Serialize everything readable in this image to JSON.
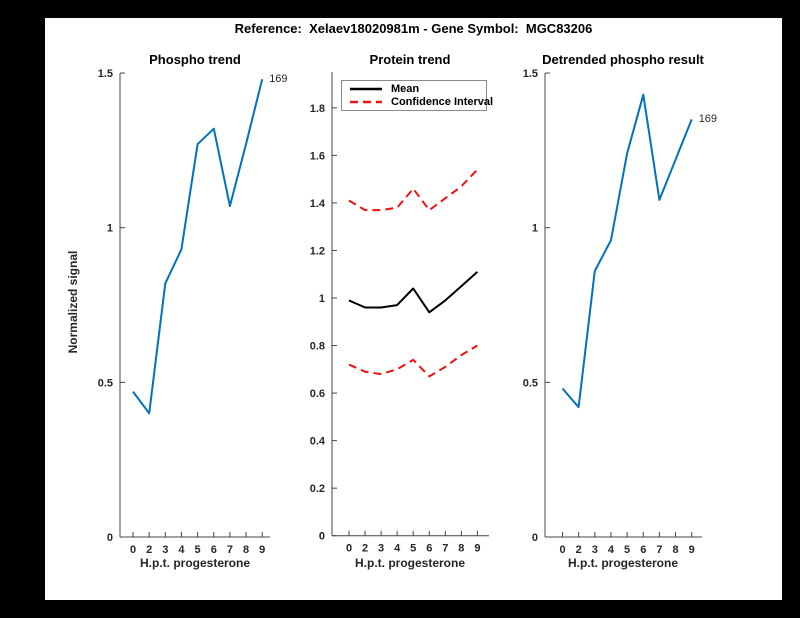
{
  "figure": {
    "title": "Reference:  Xelaev18020981m - Gene Symbol:  MGC83206",
    "background": "#ffffff",
    "frame_color": "#000000"
  },
  "colors": {
    "phospho_line": "#0072bd",
    "mean_line": "#000000",
    "confidence_line": "#ee1111",
    "axis": "#444444",
    "text": "#262626"
  },
  "chart_data": [
    {
      "type": "line",
      "title": "Phospho trend",
      "xlabel": "H.p.t. progesterone",
      "ylabel": "Normalized signal",
      "x_tick_labels": [
        "0",
        "2",
        "3",
        "4",
        "5",
        "6",
        "7",
        "8",
        "9"
      ],
      "y_ticks": [
        0,
        0.5,
        1,
        1.5
      ],
      "y_tick_labels": [
        "0",
        "0.5",
        "1",
        "1.5"
      ],
      "ylim": [
        0,
        1.5
      ],
      "grid": false,
      "series": [
        {
          "name": "phospho-signal",
          "color": "#0072bd",
          "style": "solid",
          "values": [
            0.47,
            0.4,
            0.82,
            0.93,
            1.27,
            1.32,
            1.07,
            1.27,
            1.48
          ]
        }
      ],
      "end_label": "169"
    },
    {
      "type": "line",
      "title": "Protein trend",
      "xlabel": "H.p.t. progesterone",
      "ylabel": "",
      "x_tick_labels": [
        "0",
        "2",
        "3",
        "4",
        "5",
        "6",
        "7",
        "8",
        "9"
      ],
      "y_ticks": [
        0,
        0.2,
        0.4,
        0.6,
        0.8,
        1,
        1.2,
        1.4,
        1.6,
        1.8
      ],
      "y_tick_labels": [
        "0",
        "0.2",
        "0.4",
        "0.6",
        "0.8",
        "1",
        "1.2",
        "1.4",
        "1.6",
        "1.8"
      ],
      "ylim": [
        0,
        1.95
      ],
      "grid": false,
      "series": [
        {
          "name": "mean",
          "color": "#000000",
          "style": "solid",
          "values": [
            0.99,
            0.96,
            0.96,
            0.97,
            1.04,
            0.94,
            0.99,
            1.05,
            1.11
          ]
        },
        {
          "name": "confidence-upper",
          "color": "#ee1111",
          "style": "dashed",
          "values": [
            1.41,
            1.37,
            1.37,
            1.38,
            1.46,
            1.37,
            1.42,
            1.47,
            1.54
          ]
        },
        {
          "name": "confidence-lower",
          "color": "#ee1111",
          "style": "dashed",
          "values": [
            0.72,
            0.69,
            0.68,
            0.7,
            0.74,
            0.67,
            0.71,
            0.76,
            0.8
          ]
        }
      ],
      "legend": {
        "position": "top-left",
        "entries": [
          {
            "label": "Mean",
            "color": "#000000",
            "style": "solid"
          },
          {
            "label": "Confidence Interval",
            "color": "#ee1111",
            "style": "dashed"
          }
        ]
      },
      "end_label": ""
    },
    {
      "type": "line",
      "title": "Detrended phospho result",
      "xlabel": "H.p.t. progesterone",
      "ylabel": "",
      "x_tick_labels": [
        "0",
        "2",
        "3",
        "4",
        "5",
        "6",
        "7",
        "8",
        "9"
      ],
      "y_ticks": [
        0,
        0.5,
        1,
        1.5
      ],
      "y_tick_labels": [
        "0",
        "0.5",
        "1",
        "1.5"
      ],
      "ylim": [
        0,
        1.5
      ],
      "grid": false,
      "series": [
        {
          "name": "detrended-phospho-signal",
          "color": "#0072bd",
          "style": "solid",
          "values": [
            0.48,
            0.42,
            0.86,
            0.96,
            1.24,
            1.43,
            1.09,
            1.22,
            1.35
          ]
        }
      ],
      "end_label": "169"
    }
  ]
}
